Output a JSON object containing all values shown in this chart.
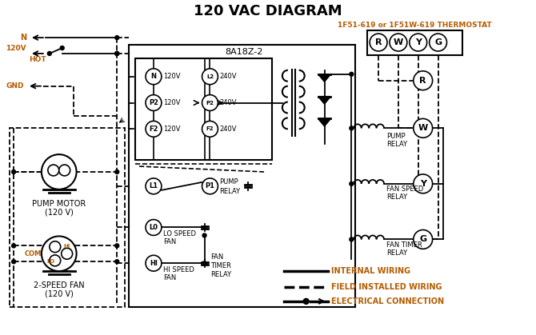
{
  "title": "120 VAC DIAGRAM",
  "bg_color": "#ffffff",
  "line_color": "#000000",
  "orange_color": "#b35c00",
  "thermostat_label": "1F51-619 or 1F51W-619 THERMOSTAT",
  "module_label": "8A18Z-2",
  "terminal_labels": [
    "R",
    "W",
    "Y",
    "G"
  ],
  "pump_motor_label": "PUMP MOTOR\n(120 V)",
  "fan_label": "2-SPEED FAN\n(120 V)"
}
